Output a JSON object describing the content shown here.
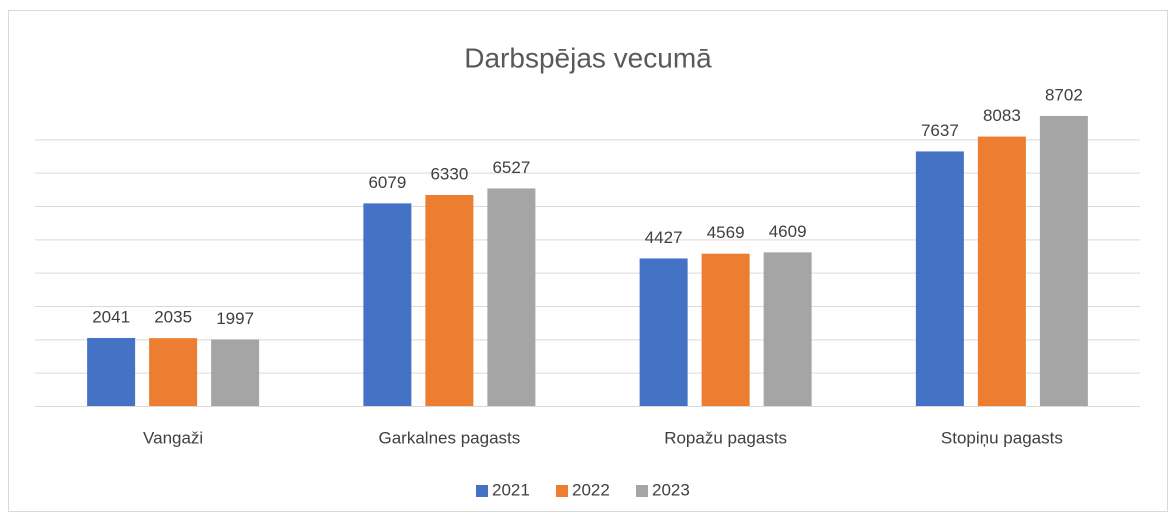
{
  "chart_data": {
    "type": "bar",
    "title": "Darbspējas vecumā",
    "categories": [
      "Vangaži",
      "Garkalnes pagasts",
      "Ropažu pagasts",
      "Stopiņu pagasts"
    ],
    "series": [
      {
        "name": "2021",
        "color": "#4472c4",
        "values": [
          2041,
          6079,
          4427,
          7637
        ]
      },
      {
        "name": "2022",
        "color": "#ed7d31",
        "values": [
          2035,
          6330,
          4569,
          8083
        ]
      },
      {
        "name": "2023",
        "color": "#a5a5a5",
        "values": [
          1997,
          6527,
          4609,
          8702
        ]
      }
    ],
    "ylim": [
      0,
      9000
    ],
    "yticks": [
      0,
      1000,
      2000,
      3000,
      4000,
      5000,
      6000,
      7000,
      8000
    ],
    "grid": true,
    "legend": "bottom"
  }
}
